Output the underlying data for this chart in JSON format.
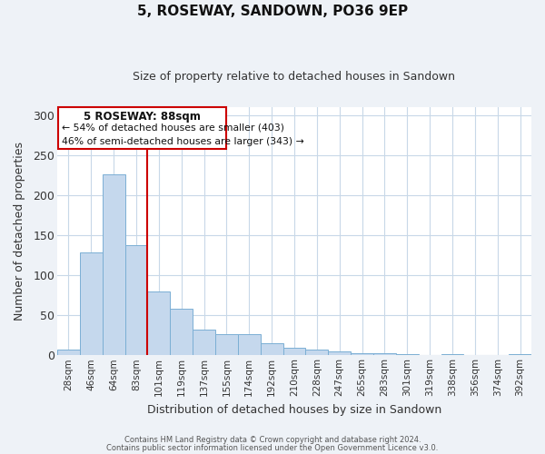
{
  "title": "5, ROSEWAY, SANDOWN, PO36 9EP",
  "subtitle": "Size of property relative to detached houses in Sandown",
  "xlabel": "Distribution of detached houses by size in Sandown",
  "ylabel": "Number of detached properties",
  "bar_labels": [
    "28sqm",
    "46sqm",
    "64sqm",
    "83sqm",
    "101sqm",
    "119sqm",
    "137sqm",
    "155sqm",
    "174sqm",
    "192sqm",
    "210sqm",
    "228sqm",
    "247sqm",
    "265sqm",
    "283sqm",
    "301sqm",
    "319sqm",
    "338sqm",
    "356sqm",
    "374sqm",
    "392sqm"
  ],
  "bar_values": [
    7,
    128,
    226,
    138,
    80,
    58,
    32,
    26,
    26,
    15,
    9,
    7,
    5,
    3,
    3,
    1,
    0,
    1,
    0,
    0,
    2
  ],
  "bar_color": "#c5d8ed",
  "bar_edge_color": "#7bafd4",
  "vline_x": 3.5,
  "vline_color": "#cc0000",
  "ylim": [
    0,
    310
  ],
  "yticks": [
    0,
    50,
    100,
    150,
    200,
    250,
    300
  ],
  "annotation_title": "5 ROSEWAY: 88sqm",
  "annotation_line1": "← 54% of detached houses are smaller (403)",
  "annotation_line2": "46% of semi-detached houses are larger (343) →",
  "annotation_box_color": "#cc0000",
  "footer_line1": "Contains HM Land Registry data © Crown copyright and database right 2024.",
  "footer_line2": "Contains public sector information licensed under the Open Government Licence v3.0.",
  "background_color": "#eef2f7",
  "plot_background": "#ffffff",
  "grid_color": "#c8d8e8"
}
